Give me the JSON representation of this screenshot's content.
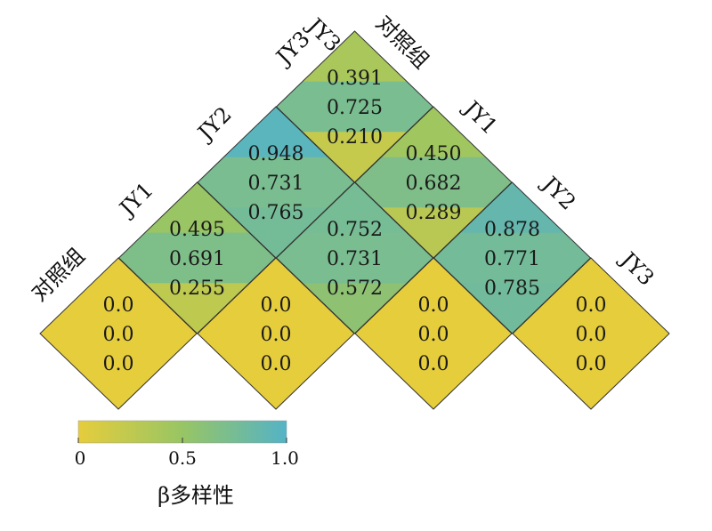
{
  "chart_data": {
    "type": "heatmap",
    "description_labels": {
      "left_diagonal": [
        "对照组",
        "JY1",
        "JY2",
        "JY3"
      ],
      "right_diagonal": [
        "JY3",
        "对照组",
        "JY1",
        "JY2",
        "JY3"
      ]
    },
    "groups": [
      "对照组",
      "JY1",
      "JY2",
      "JY3"
    ],
    "cells": [
      {
        "row": "对照组",
        "col": "对照组",
        "values": [
          0.0,
          0.0,
          0.0
        ]
      },
      {
        "row": "JY1",
        "col": "JY1",
        "values": [
          0.0,
          0.0,
          0.0
        ]
      },
      {
        "row": "JY2",
        "col": "JY2",
        "values": [
          0.0,
          0.0,
          0.0
        ]
      },
      {
        "row": "JY3",
        "col": "JY3",
        "values": [
          0.0,
          0.0,
          0.0
        ]
      },
      {
        "row": "对照组",
        "col": "JY1",
        "values": [
          0.495,
          0.691,
          0.255
        ]
      },
      {
        "row": "JY1",
        "col": "JY2",
        "values": [
          0.752,
          0.731,
          0.572
        ]
      },
      {
        "row": "JY2",
        "col": "JY3",
        "values": [
          0.878,
          0.771,
          0.785
        ]
      },
      {
        "row": "对照组",
        "col": "JY2",
        "values": [
          0.948,
          0.731,
          0.765
        ]
      },
      {
        "row": "JY1",
        "col": "JY3",
        "values": [
          0.45,
          0.682,
          0.289
        ]
      },
      {
        "row": "对照组",
        "col": "JY3",
        "values": [
          0.391,
          0.725,
          0.21
        ]
      }
    ],
    "value_labels": {
      "对照组|对照组": [
        "0.0",
        "0.0",
        "0.0"
      ],
      "JY1|JY1": [
        "0.0",
        "0.0",
        "0.0"
      ],
      "JY2|JY2": [
        "0.0",
        "0.0",
        "0.0"
      ],
      "JY3|JY3": [
        "0.0",
        "0.0",
        "0.0"
      ],
      "对照组|JY1": [
        "0.495",
        "0.691",
        "0.255"
      ],
      "JY1|JY2": [
        "0.752",
        "0.731",
        "0.572"
      ],
      "JY2|JY3": [
        "0.878",
        "0.771",
        "0.785"
      ],
      "对照组|JY2": [
        "0.948",
        "0.731",
        "0.765"
      ],
      "JY1|JY3": [
        "0.450",
        "0.682",
        "0.289"
      ],
      "对照组|JY3": [
        "0.391",
        "0.725",
        "0.210"
      ]
    },
    "colorbar": {
      "title": "β多样性",
      "range": [
        0,
        1.0
      ],
      "ticks": [
        "0",
        "0.5",
        "1.0"
      ],
      "colors": [
        "#e6cd3c",
        "#98c564",
        "#54b3c6"
      ]
    },
    "grid": false,
    "legend_placement": "bottom-left"
  }
}
